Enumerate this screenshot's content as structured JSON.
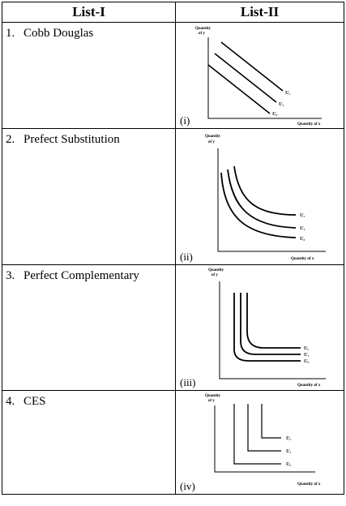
{
  "header": {
    "list1": "List-I",
    "list2": "List-II"
  },
  "rows": [
    {
      "num": "1.",
      "label": "Cobb Douglas",
      "fig_label": "(i)",
      "y_axis": [
        "Quantity",
        "of y"
      ],
      "x_axis": "Quantity of x",
      "curves": [
        "U₂",
        "U₁",
        "U₀"
      ]
    },
    {
      "num": "2.",
      "label": "Prefect Substitution",
      "fig_label": "(ii)",
      "y_axis": [
        "Quantity",
        "of y"
      ],
      "x_axis": "Quantity of x",
      "curves": [
        "U₂",
        "U₁",
        "U₀"
      ]
    },
    {
      "num": "3.",
      "label": "Perfect Complementary",
      "fig_label": "(iii)",
      "y_axis": [
        "Quantity",
        "of y"
      ],
      "x_axis": "Quantity of x",
      "curves": [
        "U₂",
        "U₁",
        "U₀"
      ]
    },
    {
      "num": "4.",
      "label": "CES",
      "fig_label": "(iv)",
      "y_axis": [
        "Quantity",
        "of y"
      ],
      "x_axis": "Quantity of x",
      "curves": [
        "U₂",
        "U₁",
        "U₀"
      ]
    }
  ]
}
